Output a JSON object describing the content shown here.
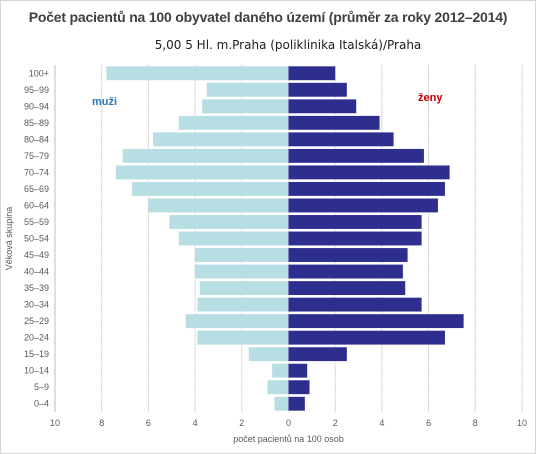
{
  "chart_data": {
    "type": "bar",
    "orientation": "horizontal",
    "title": "Počet pacientů na 100 obyvatel daného území (průměr za roky 2012–2014)",
    "subtitle": "5,00 5  Hl. m.Praha (poliklinika Italská)/Praha",
    "xlabel": "počet pacientů na 100 osob",
    "ylabel": "Věková skupina",
    "xlim": [
      -10,
      10
    ],
    "x_ticks": [
      "10",
      "8",
      "6",
      "4",
      "2",
      "0",
      "2",
      "4",
      "6",
      "8",
      "10"
    ],
    "categories": [
      "100+",
      "95–99",
      "90–94",
      "85–89",
      "80–84",
      "75–79",
      "70–74",
      "65–69",
      "60–64",
      "55–59",
      "50–54",
      "45–49",
      "40–44",
      "35–39",
      "30–34",
      "25–29",
      "20–24",
      "15–19",
      "10–14",
      "5–9",
      "0–4"
    ],
    "series": [
      {
        "name": "muži",
        "side": "left",
        "color": "#b7dfe3",
        "label_color": "#2e75b6",
        "values": [
          7.8,
          3.5,
          3.7,
          4.7,
          5.8,
          7.1,
          7.4,
          6.7,
          6.0,
          5.1,
          4.7,
          4.0,
          4.0,
          3.8,
          3.9,
          4.4,
          3.9,
          1.7,
          0.7,
          0.9,
          0.6
        ]
      },
      {
        "name": "ženy",
        "side": "right",
        "color": "#2e2e8f",
        "label_color": "#c00000",
        "values": [
          2.0,
          2.5,
          2.9,
          3.9,
          4.5,
          5.8,
          6.9,
          6.7,
          6.4,
          5.7,
          5.7,
          5.1,
          4.9,
          5.0,
          5.7,
          7.5,
          6.7,
          2.5,
          0.8,
          0.9,
          0.7
        ]
      }
    ],
    "grid": true
  }
}
